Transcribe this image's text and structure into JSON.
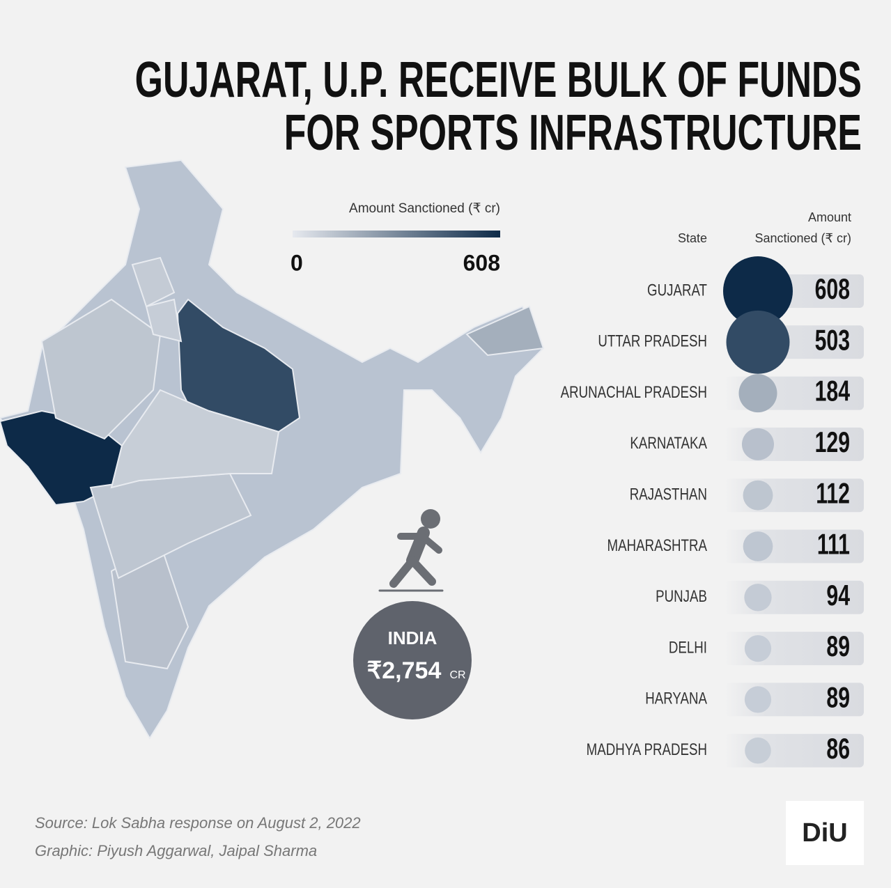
{
  "chart_data": {
    "type": "bubble",
    "title": [
      "GUJARAT, U.P. RECEIVE BULK OF FUNDS",
      "FOR SPORTS INFRASTRUCTURE"
    ],
    "legend_title": "Amount Sanctioned (₹ cr)",
    "color_range": [
      0,
      608
    ],
    "colors": [
      "#e6e9ef",
      "#0d2a48"
    ],
    "column_headers": [
      "State",
      "Amount Sanctioned (₹ cr)"
    ],
    "categories": [
      "GUJARAT",
      "UTTAR PRADESH",
      "ARUNACHAL PRADESH",
      "KARNATAKA",
      "RAJASTHAN",
      "MAHARASHTRA",
      "PUNJAB",
      "DELHI",
      "HARYANA",
      "MADHYA PRADESH"
    ],
    "values": [
      608,
      503,
      184,
      129,
      112,
      111,
      94,
      89,
      89,
      86
    ],
    "total": {
      "label": "INDIA",
      "value": 2754,
      "value_label": "₹2,754",
      "unit": "CR"
    },
    "source": "Source: Lok Sabha response on August 2, 2022",
    "credit": "Graphic: Piyush Aggarwal, Jaipal Sharma",
    "logo": "DiU"
  }
}
